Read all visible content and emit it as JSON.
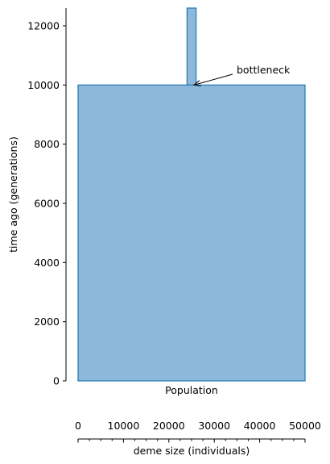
{
  "chart_data": {
    "type": "demography",
    "population_label": "Population",
    "ylabel": "time ago (generations)",
    "xlabel": "deme size (individuals)",
    "ylim": [
      0,
      12600
    ],
    "y_ticks": [
      0,
      2000,
      4000,
      6000,
      8000,
      10000,
      12000
    ],
    "x_size_range": [
      0,
      50000
    ],
    "x_ticks": [
      0,
      10000,
      20000,
      30000,
      40000,
      50000
    ],
    "x_minor_step": 2500,
    "epochs": [
      {
        "start_time": 0,
        "end_time": 10000,
        "size": 50000
      },
      {
        "start_time": 10000,
        "end_time": 12600,
        "size": 2000
      }
    ],
    "annotation": {
      "text": "bottleneck",
      "time": 10000
    },
    "colors": {
      "fill": "#8db8d9",
      "edge": "#1f77b4",
      "axis": "#000000"
    }
  }
}
